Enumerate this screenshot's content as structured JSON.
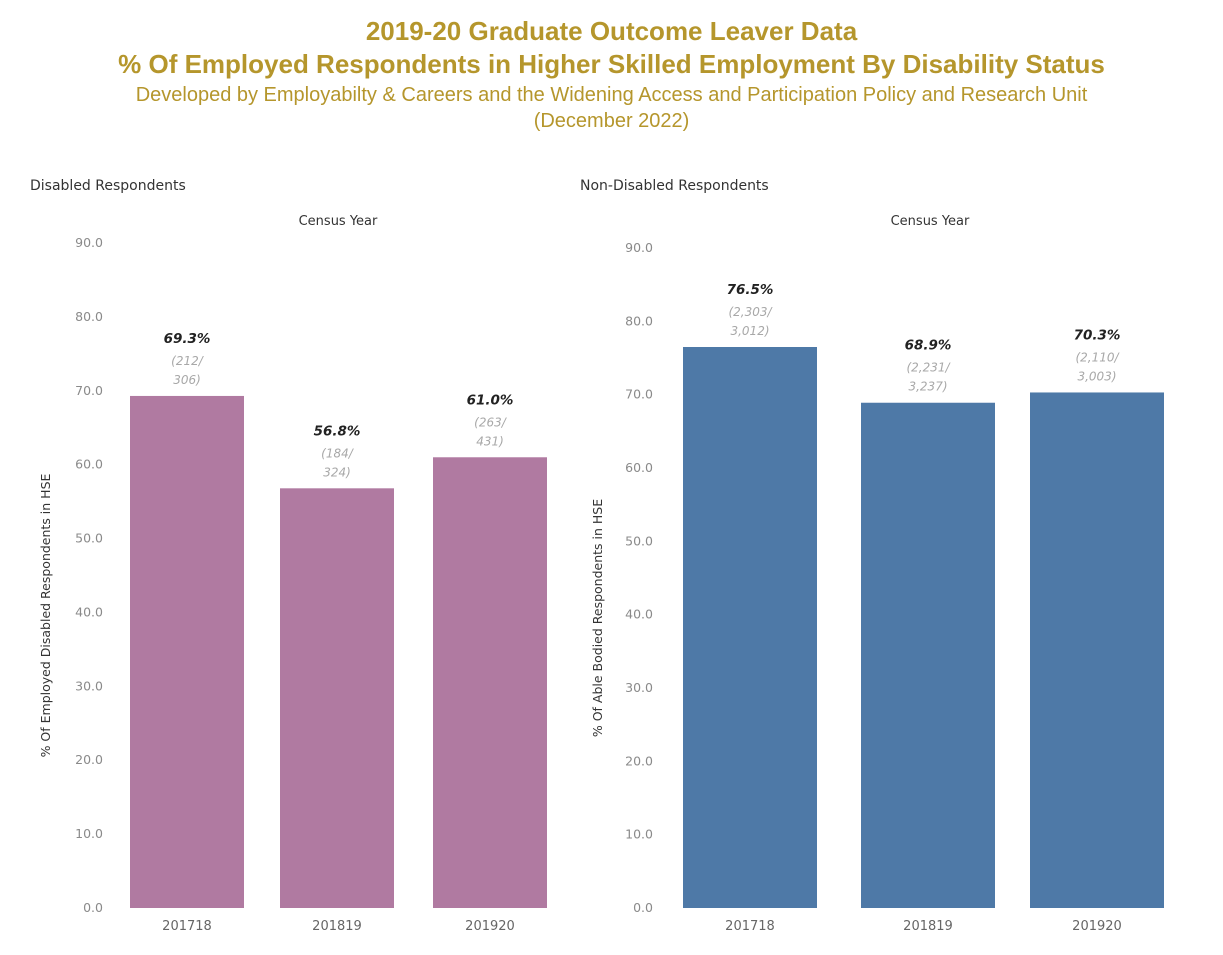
{
  "header": {
    "title": "2019-20 Graduate Outcome Leaver Data",
    "subtitle_main": "% Of Employed Respondents in Higher Skilled Employment By Disability Status",
    "subtitle_dev": "Developed by Employabilty & Careers and the Widening Access and Participation Policy and Research Unit",
    "subtitle_date": "(December 2022)"
  },
  "chart_data": [
    {
      "type": "bar",
      "panel_title": "Disabled Respondents",
      "column_header": "Census Year",
      "ylabel": "% Of Employed Disabled Respondents in HSE",
      "categories": [
        "201718",
        "201819",
        "201920"
      ],
      "values": [
        69.3,
        56.8,
        61.0
      ],
      "value_labels": [
        "69.3%",
        "56.8%",
        "61.0%"
      ],
      "count_labels": [
        [
          "(212/",
          "306)"
        ],
        [
          "(184/",
          "324)"
        ],
        [
          "(263/",
          "431)"
        ]
      ],
      "yticks": [
        "0.0",
        "10.0",
        "20.0",
        "30.0",
        "40.0",
        "50.0",
        "60.0",
        "70.0",
        "80.0",
        "90.0"
      ],
      "ylim": [
        0,
        90
      ],
      "color": "#b07aa1",
      "grid": false
    },
    {
      "type": "bar",
      "panel_title": "Non-Disabled Respondents",
      "column_header": "Census Year",
      "ylabel": "% Of Able Bodied Respondents in HSE",
      "categories": [
        "201718",
        "201819",
        "201920"
      ],
      "values": [
        76.5,
        68.9,
        70.3
      ],
      "value_labels": [
        "76.5%",
        "68.9%",
        "70.3%"
      ],
      "count_labels": [
        [
          "(2,303/",
          "3,012)"
        ],
        [
          "(2,231/",
          "3,237)"
        ],
        [
          "(2,110/",
          "3,003)"
        ]
      ],
      "yticks": [
        "0.0",
        "10.0",
        "20.0",
        "30.0",
        "40.0",
        "50.0",
        "60.0",
        "70.0",
        "80.0",
        "90.0"
      ],
      "ylim": [
        0,
        90
      ],
      "color": "#4e79a7",
      "grid": false
    }
  ]
}
